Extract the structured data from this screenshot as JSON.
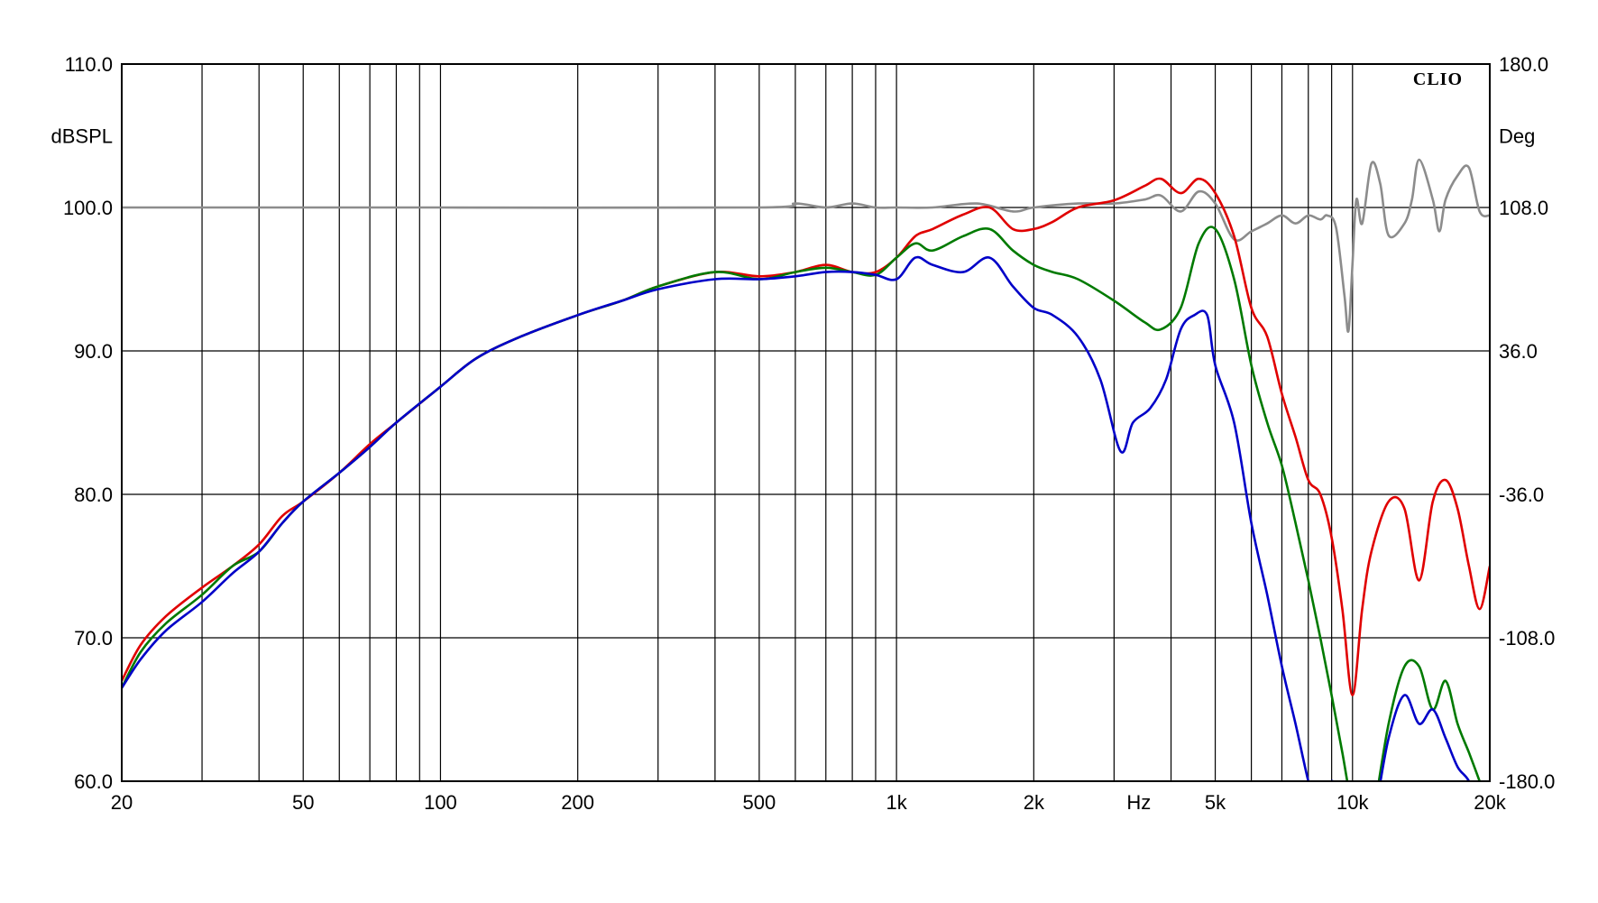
{
  "chart_data": {
    "type": "line",
    "brand": "CLIO",
    "x_scale": "log",
    "xlim": [
      20,
      20000
    ],
    "x_ticks": [
      {
        "v": 20,
        "label": "20"
      },
      {
        "v": 50,
        "label": "50"
      },
      {
        "v": 100,
        "label": "100"
      },
      {
        "v": 200,
        "label": "200"
      },
      {
        "v": 500,
        "label": "500"
      },
      {
        "v": 1000,
        "label": "1k"
      },
      {
        "v": 2000,
        "label": "2k"
      },
      {
        "v": 5000,
        "label": "5k"
      },
      {
        "v": 10000,
        "label": "10k"
      },
      {
        "v": 20000,
        "label": "20k"
      }
    ],
    "x_unit_label": "Hz",
    "x_unit_at": 3400,
    "ylim_left": [
      60,
      110
    ],
    "ylabel_left": "dBSPL",
    "y_ticks_left": [
      "60.0",
      "70.0",
      "80.0",
      "90.0",
      "100.0",
      "110.0"
    ],
    "ylim_right": [
      -180,
      180
    ],
    "ylabel_right": "Deg",
    "y_ticks_right": [
      "-180.0",
      "-108.0",
      "-36.0",
      "36.0",
      "108.0",
      "180.0"
    ],
    "grid": true,
    "series": [
      {
        "color": "#e00000",
        "axis": "left",
        "x": [
          20,
          22,
          25,
          30,
          35,
          40,
          45,
          50,
          60,
          70,
          80,
          100,
          120,
          150,
          200,
          250,
          300,
          400,
          500,
          600,
          700,
          800,
          900,
          1000,
          1100,
          1200,
          1400,
          1600,
          1800,
          2000,
          2200,
          2500,
          3000,
          3500,
          3800,
          4200,
          4600,
          5000,
          5500,
          6000,
          6500,
          7000,
          7500,
          8000,
          8500,
          9000,
          9500,
          10000,
          10500,
          11000,
          12000,
          13000,
          14000,
          15000,
          16000,
          17000,
          18000,
          19000,
          20000
        ],
        "values": [
          67,
          69.5,
          71.5,
          73.5,
          75,
          76.5,
          78.5,
          79.5,
          81.5,
          83.5,
          85,
          87.5,
          89.5,
          91,
          92.5,
          93.5,
          94.5,
          95.5,
          95.2,
          95.5,
          96,
          95.5,
          95.5,
          96.5,
          98,
          98.5,
          99.5,
          100,
          98.5,
          98.5,
          99,
          100,
          100.5,
          101.5,
          102,
          101,
          102,
          101,
          98,
          93,
          91,
          87,
          84,
          81,
          80,
          77,
          72,
          66,
          72,
          76,
          79.5,
          79,
          74,
          79.5,
          81,
          79,
          75,
          72,
          75
        ]
      },
      {
        "color": "#007a00",
        "axis": "left",
        "x": [
          20,
          22,
          25,
          30,
          35,
          40,
          45,
          50,
          60,
          70,
          80,
          100,
          120,
          150,
          200,
          250,
          300,
          400,
          500,
          600,
          700,
          800,
          900,
          1000,
          1100,
          1200,
          1400,
          1600,
          1800,
          2000,
          2200,
          2500,
          3000,
          3500,
          3800,
          4200,
          4600,
          5000,
          5500,
          6000,
          6500,
          7000,
          7500,
          8000,
          8500,
          9000,
          9500,
          10000,
          10500,
          11000,
          12000,
          13000,
          14000,
          15000,
          16000,
          17000,
          18000,
          19000,
          20000
        ],
        "values": [
          66.5,
          69,
          71,
          73,
          75,
          76,
          78,
          79.5,
          81.5,
          83.3,
          85,
          87.5,
          89.5,
          91,
          92.5,
          93.5,
          94.5,
          95.5,
          95,
          95.5,
          95.8,
          95.5,
          95.3,
          96.5,
          97.5,
          97,
          98,
          98.5,
          97,
          96,
          95.5,
          95,
          93.5,
          92,
          91.5,
          93,
          97.5,
          98.5,
          95,
          89,
          85,
          82,
          78,
          74,
          70,
          66,
          62,
          58,
          56,
          57,
          64,
          68,
          68,
          65,
          67,
          64,
          62,
          60,
          58
        ]
      },
      {
        "color": "#0000c8",
        "axis": "left",
        "x": [
          20,
          22,
          25,
          30,
          35,
          40,
          45,
          50,
          60,
          70,
          80,
          100,
          120,
          150,
          200,
          250,
          300,
          400,
          500,
          600,
          700,
          800,
          900,
          1000,
          1100,
          1200,
          1400,
          1600,
          1800,
          2000,
          2200,
          2500,
          2800,
          3100,
          3300,
          3600,
          3900,
          4200,
          4500,
          4800,
          5000,
          5500,
          6000,
          6500,
          7000,
          7500,
          8000,
          8500,
          9000,
          9500,
          10000,
          11000,
          12000,
          13000,
          14000,
          15000,
          16000,
          17000,
          18000,
          19000,
          20000
        ],
        "values": [
          66.5,
          68.5,
          70.5,
          72.5,
          74.5,
          76,
          78,
          79.5,
          81.5,
          83.3,
          85,
          87.5,
          89.5,
          91,
          92.5,
          93.5,
          94.3,
          95,
          95,
          95.2,
          95.5,
          95.5,
          95.3,
          95,
          96.5,
          96,
          95.5,
          96.5,
          94.5,
          93,
          92.5,
          91,
          88,
          83,
          85,
          86,
          88,
          91.5,
          92.5,
          92.5,
          89,
          85,
          78,
          73,
          68,
          64,
          60,
          57,
          60,
          58,
          56,
          57,
          63,
          66,
          64,
          65,
          63,
          61,
          60,
          58,
          56
        ]
      },
      {
        "color": "#8c8c8c",
        "axis": "right",
        "x": [
          20,
          100,
          500,
          600,
          700,
          800,
          900,
          1000,
          1200,
          1500,
          1800,
          2000,
          2500,
          3000,
          3500,
          3800,
          4200,
          4600,
          5000,
          5500,
          6000,
          6500,
          7000,
          7500,
          8000,
          8500,
          8800,
          9200,
          9600,
          9800,
          10000,
          10200,
          10500,
          11000,
          11500,
          12000,
          13000,
          13500,
          14000,
          15000,
          15500,
          16000,
          17000,
          18000,
          19000,
          20000
        ],
        "values": [
          108,
          108,
          108,
          110,
          108,
          110,
          108,
          108,
          108,
          110,
          106,
          108,
          110,
          110,
          112,
          114,
          106,
          116,
          110,
          92,
          96,
          100,
          104,
          100,
          104,
          102,
          104,
          98,
          64,
          46,
          80,
          112,
          100,
          130,
          120,
          94,
          100,
          112,
          132,
          112,
          96,
          112,
          124,
          128,
          106,
          104
        ]
      }
    ]
  }
}
